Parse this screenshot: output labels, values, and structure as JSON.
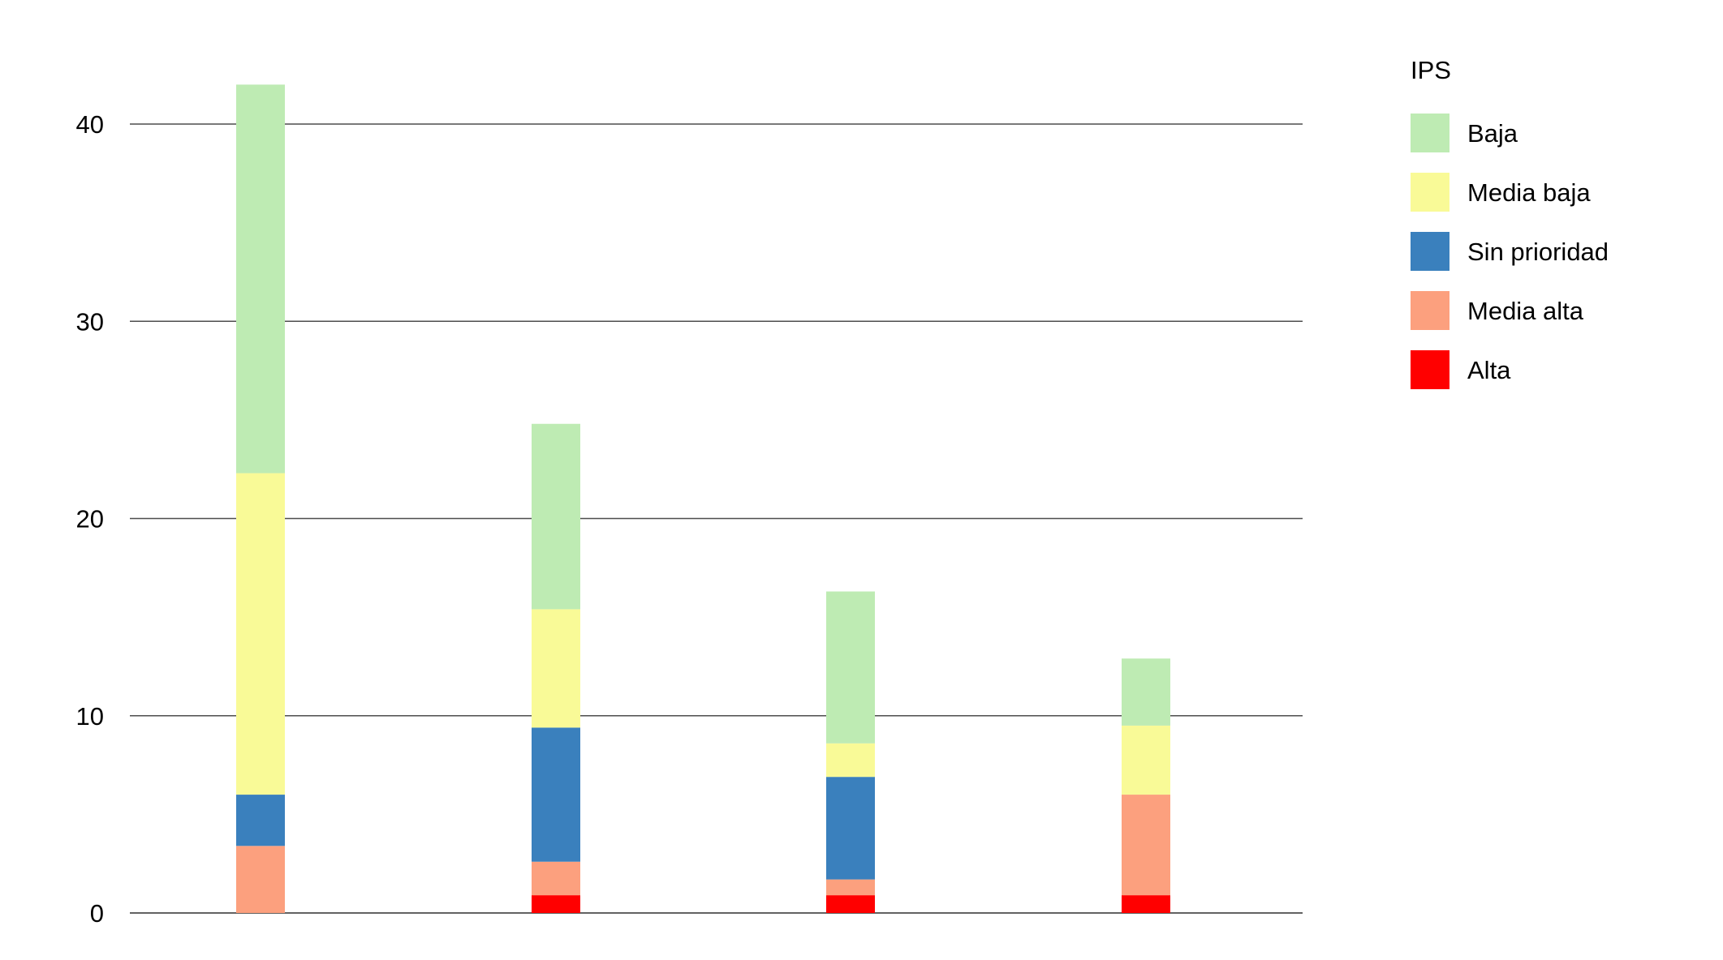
{
  "chart_data": {
    "type": "bar",
    "stacked": true,
    "categories": [
      "",
      "",
      "",
      ""
    ],
    "series": [
      {
        "name": "Alta",
        "color": "#ff0000",
        "values": [
          0,
          0.9,
          0.9,
          0.9
        ]
      },
      {
        "name": "Media alta",
        "color": "#fca07e",
        "values": [
          3.4,
          1.7,
          0.8,
          5.1
        ]
      },
      {
        "name": "Sin prioridad",
        "color": "#3a80bd",
        "values": [
          2.6,
          6.8,
          5.2,
          0
        ]
      },
      {
        "name": "Media baja",
        "color": "#f9fa97",
        "values": [
          16.3,
          6.0,
          1.7,
          3.5
        ]
      },
      {
        "name": "Baja",
        "color": "#beebb3",
        "values": [
          19.7,
          9.4,
          7.7,
          3.4
        ]
      }
    ],
    "title": "",
    "xlabel": "",
    "ylabel": "",
    "ylim": [
      0,
      42
    ],
    "yticks": [
      0,
      10,
      20,
      30,
      40
    ],
    "grid": true,
    "legend": {
      "title": "IPS",
      "placement": "right",
      "order": [
        "Baja",
        "Media baja",
        "Sin prioridad",
        "Media alta",
        "Alta"
      ]
    }
  }
}
